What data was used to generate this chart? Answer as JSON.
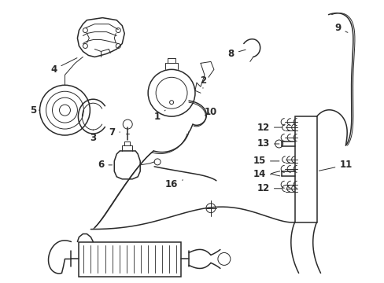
{
  "bg_color": "#ffffff",
  "line_color": "#2a2a2a",
  "text_color": "#1a1a1a",
  "figsize": [
    4.89,
    3.6
  ],
  "dpi": 100,
  "label_font_size": 8.5
}
